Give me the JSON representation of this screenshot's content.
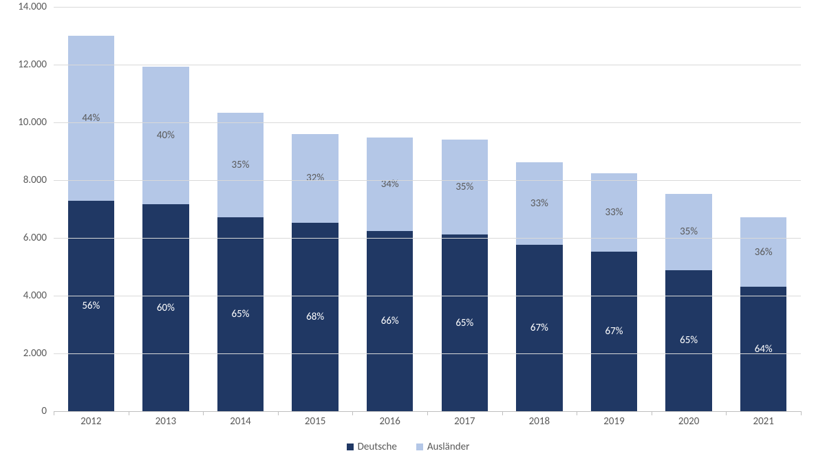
{
  "chart": {
    "type": "stacked-bar",
    "background_color": "#ffffff",
    "grid_color": "#d9d9d9",
    "baseline_color": "#bfbfbf",
    "axis_label_color": "#595959",
    "axis_label_fontsize": 15,
    "bar_label_fontsize": 15,
    "y": {
      "min": 0,
      "max": 14000,
      "tick_step": 2000,
      "ticks": [
        {
          "value": 0,
          "label": "0"
        },
        {
          "value": 2000,
          "label": "2.000"
        },
        {
          "value": 4000,
          "label": "4.000"
        },
        {
          "value": 6000,
          "label": "6.000"
        },
        {
          "value": 8000,
          "label": "8.000"
        },
        {
          "value": 10000,
          "label": "10.000"
        },
        {
          "value": 12000,
          "label": "12.000"
        },
        {
          "value": 14000,
          "label": "14.000"
        }
      ]
    },
    "series": [
      {
        "key": "deutsche",
        "label": "Deutsche",
        "color": "#203864",
        "label_text_color": "#ffffff"
      },
      {
        "key": "auslaender",
        "label": "Ausländer",
        "color": "#b4c7e7",
        "label_text_color": "#595959"
      }
    ],
    "bar_width_ratio": 0.62,
    "categories": [
      {
        "label": "2012",
        "deutsche": 7280,
        "auslaender": 5720,
        "deutsche_pct": "56%",
        "auslaender_pct": "44%"
      },
      {
        "label": "2013",
        "deutsche": 7160,
        "auslaender": 4770,
        "deutsche_pct": "60%",
        "auslaender_pct": "40%"
      },
      {
        "label": "2014",
        "deutsche": 6720,
        "auslaender": 3620,
        "deutsche_pct": "65%",
        "auslaender_pct": "35%"
      },
      {
        "label": "2015",
        "deutsche": 6530,
        "auslaender": 3070,
        "deutsche_pct": "68%",
        "auslaender_pct": "32%"
      },
      {
        "label": "2016",
        "deutsche": 6250,
        "auslaender": 3220,
        "deutsche_pct": "66%",
        "auslaender_pct": "34%"
      },
      {
        "label": "2017",
        "deutsche": 6110,
        "auslaender": 3290,
        "deutsche_pct": "65%",
        "auslaender_pct": "35%"
      },
      {
        "label": "2018",
        "deutsche": 5770,
        "auslaender": 2840,
        "deutsche_pct": "67%",
        "auslaender_pct": "33%"
      },
      {
        "label": "2019",
        "deutsche": 5520,
        "auslaender": 2720,
        "deutsche_pct": "67%",
        "auslaender_pct": "33%"
      },
      {
        "label": "2020",
        "deutsche": 4890,
        "auslaender": 2630,
        "deutsche_pct": "65%",
        "auslaender_pct": "35%"
      },
      {
        "label": "2021",
        "deutsche": 4300,
        "auslaender": 2420,
        "deutsche_pct": "64%",
        "auslaender_pct": "36%"
      }
    ]
  }
}
